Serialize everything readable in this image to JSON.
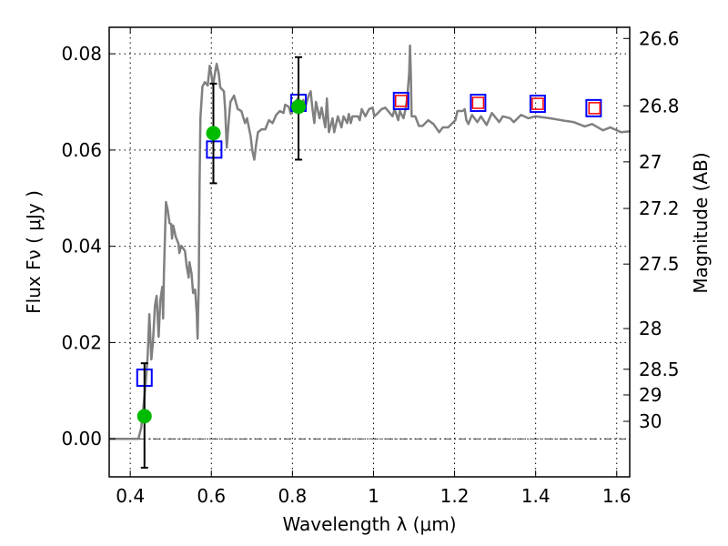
{
  "chart_data": {
    "type": "line",
    "title": "",
    "xlabel": "Wavelength  λ (μm)",
    "ylabel": "Flux  Fν  ( μJy )",
    "ylabel_right": "Magnitude (AB)",
    "xlim": [
      0.348,
      1.632
    ],
    "ylim": [
      -0.0079,
      0.0855
    ],
    "grid": true,
    "x_ticks": [
      0.4,
      0.6,
      0.8,
      1.0,
      1.2,
      1.4,
      1.6
    ],
    "x_tick_labels": [
      "0.4",
      "0.6",
      "0.8",
      "1",
      "1.2",
      "1.4",
      "1.6"
    ],
    "y_ticks": [
      0.0,
      0.02,
      0.04,
      0.06,
      0.08
    ],
    "y_tick_labels": [
      "0.00",
      "0.02",
      "0.04",
      "0.06",
      "0.08"
    ],
    "right_ticks_mag": [
      26.6,
      26.8,
      27,
      27.2,
      27.5,
      28,
      28.5,
      29,
      30
    ],
    "right_tick_labels": [
      "26.6",
      "26.8",
      "27",
      "27.2",
      "27.5",
      "28",
      "28.5",
      "29",
      "30"
    ],
    "zero_line": 0.0,
    "colors": {
      "spectrum": "#808080",
      "photometry": "#00bb00",
      "blue_model": "#0000ff",
      "red_model": "#ff0000",
      "errorbar": "#000000"
    },
    "series": [
      {
        "name": "spectrum",
        "kind": "line",
        "x": [
          0.348,
          0.42,
          0.427,
          0.434,
          0.438,
          0.443,
          0.447,
          0.452,
          0.456,
          0.461,
          0.465,
          0.47,
          0.474,
          0.479,
          0.481,
          0.483,
          0.488,
          0.492,
          0.497,
          0.501,
          0.503,
          0.506,
          0.512,
          0.519,
          0.521,
          0.526,
          0.535,
          0.539,
          0.544,
          0.546,
          0.551,
          0.555,
          0.56,
          0.564,
          0.566,
          0.569,
          0.571,
          0.573,
          0.578,
          0.584,
          0.591,
          0.596,
          0.6,
          0.604,
          0.609,
          0.613,
          0.618,
          0.622,
          0.631,
          0.634,
          0.638,
          0.643,
          0.647,
          0.656,
          0.665,
          0.674,
          0.683,
          0.688,
          0.697,
          0.701,
          0.706,
          0.71,
          0.715,
          0.724,
          0.733,
          0.742,
          0.751,
          0.76,
          0.769,
          0.778,
          0.782,
          0.791,
          0.796,
          0.804,
          0.813,
          0.818,
          0.827,
          0.831,
          0.84,
          0.845,
          0.849,
          0.854,
          0.858,
          0.867,
          0.872,
          0.881,
          0.885,
          0.89,
          0.899,
          0.903,
          0.912,
          0.921,
          0.926,
          0.935,
          0.939,
          0.944,
          0.948,
          0.962,
          0.966,
          0.971,
          0.98,
          0.989,
          0.998,
          1.002,
          1.011,
          1.02,
          1.029,
          1.047,
          1.052,
          1.061,
          1.065,
          1.074,
          1.079,
          1.083,
          1.088,
          1.09,
          1.092,
          1.094,
          1.103,
          1.112,
          1.121,
          1.135,
          1.148,
          1.162,
          1.171,
          1.184,
          1.202,
          1.207,
          1.22,
          1.225,
          1.229,
          1.234,
          1.243,
          1.256,
          1.265,
          1.279,
          1.292,
          1.31,
          1.319,
          1.337,
          1.346,
          1.364,
          1.382,
          1.4,
          1.436,
          1.463,
          1.494,
          1.521,
          1.539,
          1.566,
          1.584,
          1.611,
          1.634
        ],
        "y": [
          0,
          0,
          0.0023,
          0.0079,
          0.0117,
          0.0174,
          0.0259,
          0.0165,
          0.0202,
          0.0278,
          0.0297,
          0.0212,
          0.0287,
          0.0316,
          0.025,
          0.0344,
          0.0492,
          0.0477,
          0.0448,
          0.0446,
          0.0416,
          0.0443,
          0.042,
          0.0405,
          0.0386,
          0.0401,
          0.039,
          0.0359,
          0.0335,
          0.0367,
          0.0344,
          0.0303,
          0.031,
          0.0259,
          0.0208,
          0.0325,
          0.0533,
          0.0666,
          0.0732,
          0.0741,
          0.0734,
          0.0775,
          0.0757,
          0.0734,
          0.076,
          0.0779,
          0.076,
          0.073,
          0.0722,
          0.0685,
          0.0605,
          0.0662,
          0.07,
          0.0713,
          0.0685,
          0.0681,
          0.0656,
          0.0666,
          0.0628,
          0.0599,
          0.058,
          0.0609,
          0.0637,
          0.0643,
          0.0643,
          0.0662,
          0.0656,
          0.0673,
          0.0681,
          0.0677,
          0.0694,
          0.069,
          0.0675,
          0.0694,
          0.0707,
          0.0694,
          0.0704,
          0.0688,
          0.0713,
          0.0722,
          0.0688,
          0.0656,
          0.07,
          0.0666,
          0.0688,
          0.0647,
          0.0707,
          0.0637,
          0.0666,
          0.0637,
          0.067,
          0.0647,
          0.067,
          0.0656,
          0.0675,
          0.0656,
          0.067,
          0.067,
          0.0662,
          0.0685,
          0.067,
          0.0685,
          0.0688,
          0.067,
          0.0677,
          0.0685,
          0.0688,
          0.067,
          0.0685,
          0.0662,
          0.0681,
          0.0666,
          0.0685,
          0.0707,
          0.076,
          0.0817,
          0.076,
          0.067,
          0.067,
          0.065,
          0.065,
          0.0662,
          0.0654,
          0.0637,
          0.0647,
          0.0647,
          0.0662,
          0.0681,
          0.0681,
          0.0685,
          0.0662,
          0.0654,
          0.0673,
          0.0658,
          0.067,
          0.0652,
          0.0677,
          0.0658,
          0.067,
          0.0666,
          0.0658,
          0.0673,
          0.0666,
          0.067,
          0.0666,
          0.0662,
          0.0658,
          0.0649,
          0.0654,
          0.0641,
          0.0647,
          0.0637,
          0.0639
        ]
      },
      {
        "name": "observed photometry",
        "kind": "errorbar-circle",
        "x": [
          0.435,
          0.605,
          0.815
        ],
        "y": [
          0.0047,
          0.0635,
          0.069
        ],
        "y_low": [
          -0.006,
          0.0531,
          0.058
        ],
        "y_high": [
          0.0157,
          0.0738,
          0.0793
        ]
      },
      {
        "name": "model photometry (blue squares)",
        "kind": "square",
        "x": [
          0.435,
          0.607,
          0.815,
          1.068,
          1.258,
          1.405,
          1.543
        ],
        "y": [
          0.0127,
          0.0601,
          0.0698,
          0.0702,
          0.0698,
          0.0696,
          0.0687
        ]
      },
      {
        "name": "model photometry (red squares)",
        "kind": "square",
        "x": [
          1.068,
          1.258,
          1.405,
          1.545
        ],
        "y": [
          0.0702,
          0.0698,
          0.0696,
          0.0687
        ]
      }
    ]
  }
}
